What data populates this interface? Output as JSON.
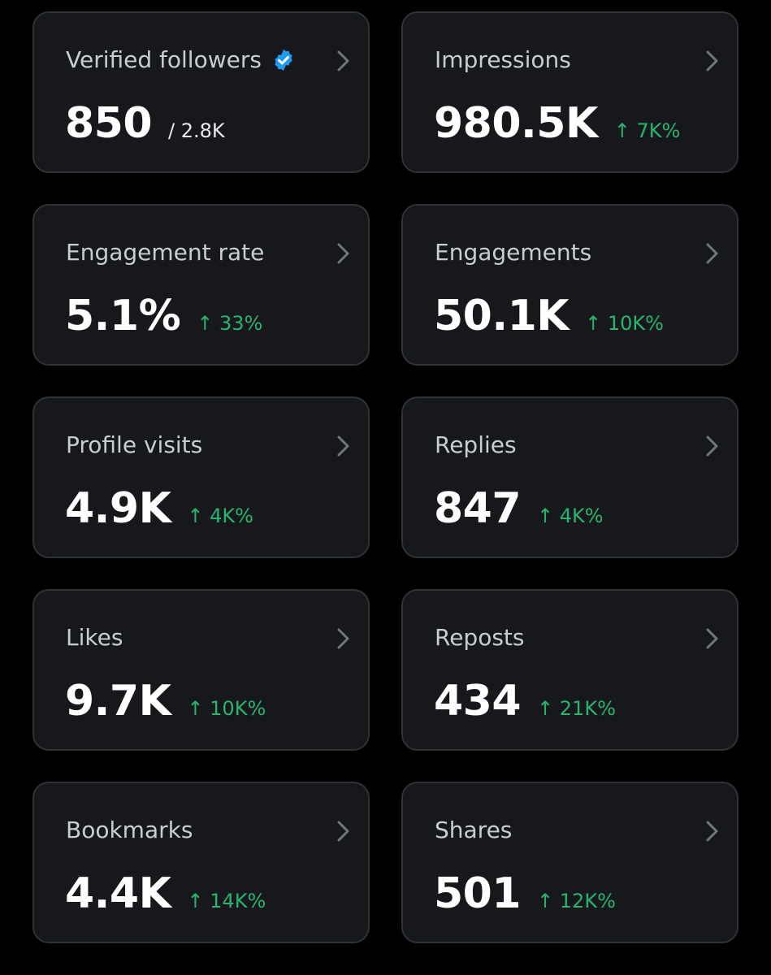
{
  "cards": [
    {
      "title": "Verified followers",
      "value": "850",
      "sub": "/ 2.8K",
      "verified": true
    },
    {
      "title": "Impressions",
      "value": "980.5K",
      "change": "↑ 7K%"
    },
    {
      "title": "Engagement rate",
      "value": "5.1%",
      "change": "↑ 33%"
    },
    {
      "title": "Engagements",
      "value": "50.1K",
      "change": "↑ 10K%"
    },
    {
      "title": "Profile visits",
      "value": "4.9K",
      "change": "↑ 4K%"
    },
    {
      "title": "Replies",
      "value": "847",
      "change": "↑ 4K%"
    },
    {
      "title": "Likes",
      "value": "9.7K",
      "change": "↑ 10K%"
    },
    {
      "title": "Reposts",
      "value": "434",
      "change": "↑ 21K%"
    },
    {
      "title": "Bookmarks",
      "value": "4.4K",
      "change": "↑ 14K%"
    },
    {
      "title": "Shares",
      "value": "501",
      "change": "↑ 12K%"
    }
  ],
  "icons": {
    "verified": "verified-badge-icon",
    "chevron": "chevron-right-icon"
  },
  "colors": {
    "background": "#000000",
    "card": "#16181c",
    "border": "#2f3336",
    "title": "#c9cdd1",
    "value": "#ffffff",
    "positive": "#28b46f",
    "verified": "#1d9bf0"
  }
}
